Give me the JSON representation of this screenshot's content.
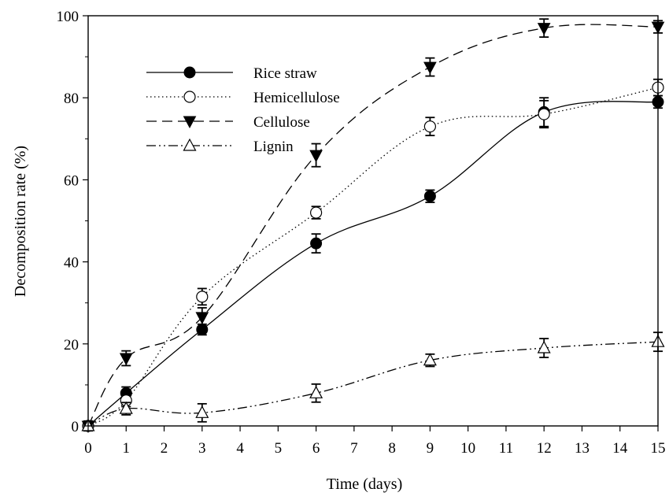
{
  "chart_data": {
    "type": "line",
    "xlabel": "Time (days)",
    "ylabel": "Decomposition rate (%)",
    "xlim": [
      0,
      15
    ],
    "ylim": [
      0,
      100
    ],
    "xticks": [
      0,
      1,
      2,
      3,
      4,
      5,
      6,
      7,
      8,
      9,
      10,
      11,
      12,
      13,
      14,
      15
    ],
    "yticks": [
      0,
      20,
      40,
      60,
      80,
      100
    ],
    "grid": false,
    "legend_position": "top-left",
    "series": [
      {
        "name": "Rice straw",
        "line_style": "solid",
        "marker": "filled-circle",
        "x": [
          0,
          1,
          3,
          6,
          9,
          12,
          15
        ],
        "y": [
          0,
          8,
          23.5,
          44.5,
          56,
          76.5,
          79
        ],
        "err": [
          0.8,
          1.5,
          1.3,
          2.3,
          1.5,
          3.5,
          1.5
        ]
      },
      {
        "name": "Hemicellulose",
        "line_style": "dotted",
        "marker": "open-circle",
        "x": [
          0,
          1,
          3,
          6,
          9,
          12,
          15
        ],
        "y": [
          0,
          6.2,
          31.5,
          52,
          73,
          76,
          82.5
        ],
        "err": [
          0.8,
          1.5,
          2,
          1.5,
          2.2,
          3.3,
          2
        ]
      },
      {
        "name": "Cellulose",
        "line_style": "dashed",
        "marker": "filled-down-triangle",
        "x": [
          0,
          1,
          3,
          6,
          9,
          12,
          15
        ],
        "y": [
          0,
          16.5,
          26.5,
          66,
          87.5,
          97,
          97.3
        ],
        "err": [
          1.2,
          1.8,
          2.3,
          2.8,
          2.2,
          2.2,
          1.5
        ]
      },
      {
        "name": "Lignin",
        "line_style": "dash-dot-dot",
        "marker": "open-up-triangle",
        "x": [
          0,
          1,
          3,
          6,
          9,
          12,
          15
        ],
        "y": [
          0,
          4.2,
          3.2,
          8,
          16,
          19,
          20.5
        ],
        "err": [
          0.8,
          1.5,
          2.2,
          2.2,
          1.5,
          2.3,
          2.3
        ]
      }
    ]
  }
}
